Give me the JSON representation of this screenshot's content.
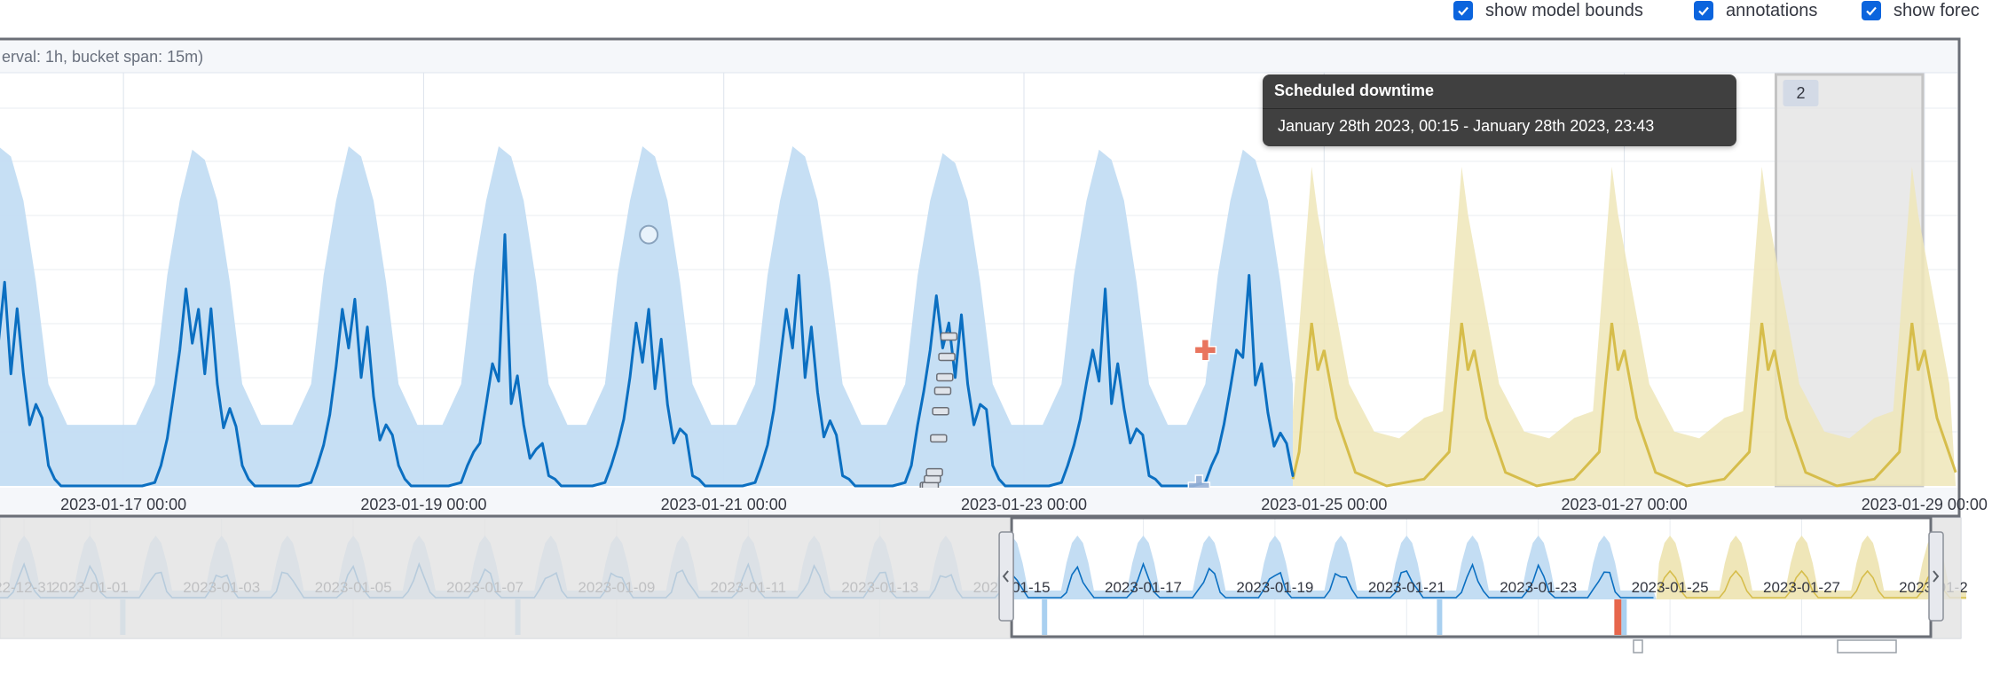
{
  "controls": {
    "show_model_bounds": "show model bounds",
    "annotations": "annotations",
    "show_forecast": "show forec"
  },
  "header_text": "erval: 1h, bucket span: 15m)",
  "tooltip": {
    "title": "Scheduled downtime",
    "range": "January 28th 2023, 00:15 - January 28th 2023, 23:43"
  },
  "annotation_badge": "2",
  "colors": {
    "actual": "#0b6fc1",
    "bounds": "#c3ddf3",
    "forecast_line": "#d6bd4b",
    "forecast_band": "#efe6b8",
    "anomaly_critical": "#e7664c",
    "context_mask": "#e2e2e2",
    "checkbox": "#0b64dd"
  },
  "chart_data": {
    "type": "line",
    "x_type": "time",
    "main": {
      "x_range": [
        "2023-01-16 00:00",
        "2023-01-29 03:00"
      ],
      "ticks": [
        "2023-01-17 00:00",
        "2023-01-19 00:00",
        "2023-01-21 00:00",
        "2023-01-23 00:00",
        "2023-01-25 00:00",
        "2023-01-27 00:00",
        "2023-01-29 00:00"
      ],
      "tick_times": [
        "2023-01-17 00:00",
        "2023-01-19 00:00",
        "2023-01-21 00:00",
        "2023-01-23 00:00",
        "2023-01-25 00:00",
        "2023-01-27 00:00",
        "2023-01-29 00:00"
      ],
      "y_range": [
        0,
        100
      ],
      "forecast_start": "2023-01-24 19:00",
      "annotation_range": [
        "2023-01-28 00:15",
        "2023-01-28 23:43"
      ],
      "series": [
        {
          "role": "actual",
          "daily_points": [
            [
              60,
              60,
              58,
              55,
              40,
              8,
              2
            ],
            [
              52,
              60,
              58,
              50,
              38,
              7,
              2
            ],
            [
              55,
              58,
              52,
              44,
              30,
              6,
              2
            ],
            [
              74,
              44,
              36,
              30,
              18,
              5,
              1
            ],
            [
              52,
              52,
              48,
              40,
              28,
              6,
              1
            ],
            [
              62,
              58,
              52,
              46,
              32,
              6,
              1
            ],
            [
              48,
              58,
              56,
              50,
              40,
              9,
              2
            ],
            [
              58,
              44,
              40,
              38,
              28,
              6,
              1
            ],
            [
              62,
              54,
              40,
              36,
              26,
              5,
              1
            ]
          ],
          "peaks": [
            {
              "t": "2023-01-16 05:00",
              "y": 60
            },
            {
              "t": "2023-01-17 12:00",
              "y": 60
            },
            {
              "t": "2023-01-18 13:00",
              "y": 62
            },
            {
              "t": "2023-01-19 13:00",
              "y": 58
            },
            {
              "t": "2023-01-20 12:00",
              "y": 74
            },
            {
              "t": "2023-01-21 12:00",
              "y": 52
            },
            {
              "t": "2023-01-22 12:00",
              "y": 60
            },
            {
              "t": "2023-01-23 13:00",
              "y": 58
            },
            {
              "t": "2023-01-24 12:00",
              "y": 48
            }
          ]
        },
        {
          "role": "model_bounds",
          "peaks_upper": [
            100,
            99,
            100,
            100,
            100,
            100,
            98,
            99,
            99
          ],
          "trough_lower": 0
        },
        {
          "role": "forecast",
          "peak": 48,
          "band_upper": 94,
          "band_lower": 0
        }
      ],
      "anomalies": [
        {
          "t": "2023-01-20 12:00",
          "y": 74,
          "severity": "low",
          "shape": "circle"
        },
        {
          "t": "2023-01-24 05:00",
          "y": 40,
          "severity": "critical",
          "shape": "cross"
        },
        {
          "t": "2023-01-24 04:00",
          "y": 0,
          "severity": "low",
          "shape": "cross"
        }
      ]
    },
    "context": {
      "ticks": [
        "22-12-31",
        "2023-01-01",
        "2023-01-03",
        "2023-01-05",
        "2023-01-07",
        "2023-01-09",
        "2023-01-11",
        "2023-01-13",
        "2023-01-15",
        "2023-01-17",
        "2023-01-19",
        "2023-01-21",
        "2023-01-23",
        "2023-01-25",
        "2023-01-27",
        "2023-01-2"
      ],
      "tick_times": [
        "2022-12-31 00:00",
        "2023-01-01 00:00",
        "2023-01-03 00:00",
        "2023-01-05 00:00",
        "2023-01-07 00:00",
        "2023-01-09 00:00",
        "2023-01-11 00:00",
        "2023-01-13 00:00",
        "2023-01-15 00:00",
        "2023-01-17 00:00",
        "2023-01-19 00:00",
        "2023-01-21 00:00",
        "2023-01-23 00:00",
        "2023-01-25 00:00",
        "2023-01-27 00:00",
        "2023-01-29 00:00"
      ],
      "selection": [
        "2023-01-15 00:00",
        "2023-01-31 00:00"
      ],
      "forecast_start": "2023-01-24 19:00"
    }
  }
}
